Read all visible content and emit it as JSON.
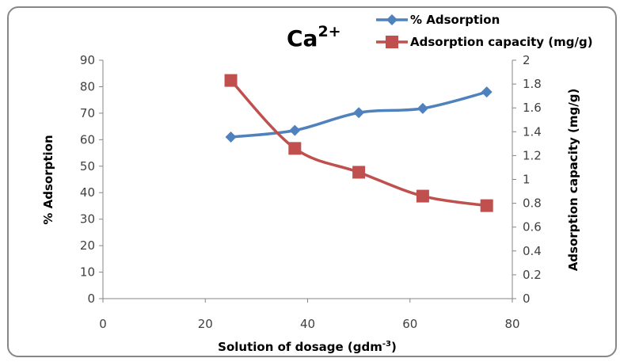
{
  "chart_data": {
    "type": "line",
    "title": "Ca",
    "title_superscript": "2+",
    "xlabel": "Solution of dosage (gdm",
    "xlabel_superscript": "-3",
    "xlabel_suffix": ")",
    "ylabel": "% Adsorption",
    "y2label": "Adsorption capacity (mg/g)",
    "xlim": [
      0,
      80
    ],
    "ylim": [
      0,
      90
    ],
    "y2lim": [
      0,
      2
    ],
    "xticks": [
      "0",
      "20",
      "40",
      "60",
      "80"
    ],
    "yticks": [
      "0",
      "10",
      "20",
      "30",
      "40",
      "50",
      "60",
      "70",
      "80",
      "90"
    ],
    "y2ticks": [
      "0",
      "0.2",
      "0.4",
      "0.6",
      "0.8",
      "1",
      "1.2",
      "1.4",
      "1.6",
      "1.8",
      "2"
    ],
    "grid": false,
    "legend_position": "top-right",
    "series": [
      {
        "name": "% Adsorption",
        "axis": "left",
        "marker": "diamond",
        "color": "#4F81BD",
        "x": [
          25,
          37.5,
          50,
          62.5,
          75
        ],
        "values": [
          61,
          63.5,
          70.2,
          71.8,
          78
        ]
      },
      {
        "name": "Adsorption capacity (mg/g)",
        "axis": "right",
        "marker": "square",
        "color": "#C0504D",
        "x": [
          25,
          37.5,
          50,
          62.5,
          75
        ],
        "values": [
          1.83,
          1.26,
          1.06,
          0.86,
          0.78
        ]
      }
    ]
  }
}
